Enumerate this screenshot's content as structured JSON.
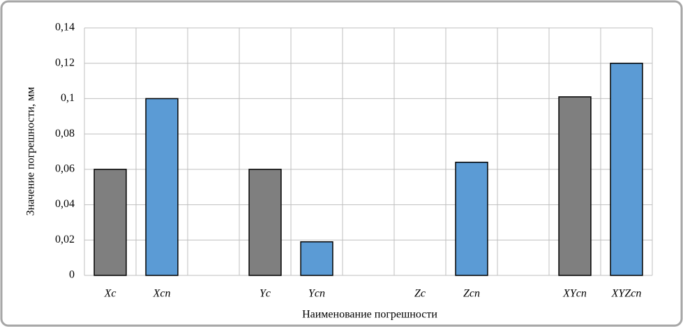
{
  "chart_data": {
    "type": "bar",
    "x_label": "Наименование погрешности",
    "y_label": "Значение погрешности, мм",
    "categories": [
      "Xc",
      "Xcп",
      null,
      "Yc",
      "Ycп",
      null,
      "Zc",
      "Zcп",
      null,
      "XYcп",
      "XYZcп"
    ],
    "values": [
      0.06,
      0.1,
      null,
      0.06,
      0.019,
      null,
      0,
      0.064,
      null,
      0.101,
      0.12
    ],
    "colors": [
      "#7f7f7f",
      "#5b9bd5",
      null,
      "#7f7f7f",
      "#5b9bd5",
      null,
      "#7f7f7f",
      "#5b9bd5",
      null,
      "#7f7f7f",
      "#5b9bd5"
    ],
    "ylim": [
      0,
      0.14
    ],
    "yticks": [
      0,
      {
        "value": 0.02,
        "label": "0,02"
      },
      {
        "value": 0.04,
        "label": "0,04"
      },
      {
        "value": 0.06,
        "label": "0,06"
      },
      {
        "value": 0.08,
        "label": "0,08"
      },
      {
        "value": 0.1,
        "label": "0,1"
      },
      {
        "value": 0.12,
        "label": "0,12"
      },
      {
        "value": 0.14,
        "label": "0,14"
      }
    ],
    "grid": true
  }
}
